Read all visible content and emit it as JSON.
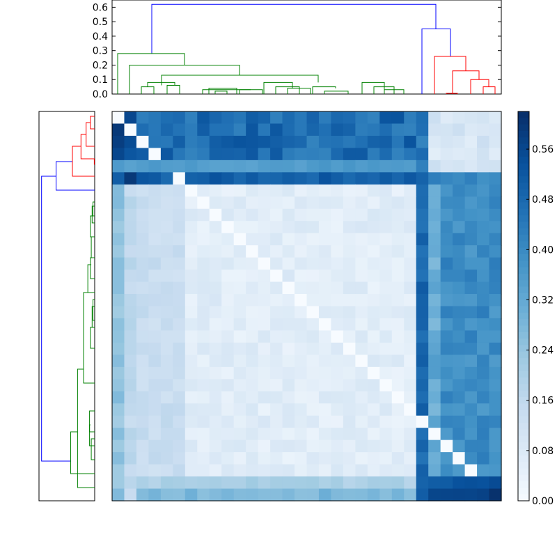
{
  "chart_data": [
    {
      "type": "dendrogram",
      "orientation": "top",
      "ylim": [
        0,
        0.65
      ],
      "yticks": [
        0.0,
        0.1,
        0.2,
        0.3,
        0.4,
        0.5,
        0.6
      ],
      "ytick_labels": [
        "0.0",
        "0.1",
        "0.2",
        "0.3",
        "0.4",
        "0.5",
        "0.6"
      ],
      "n_leaves": 32,
      "colors": {
        "root": "#0000ff",
        "cluster_a": "#008000",
        "cluster_b": "#ff0000"
      },
      "links": [
        {
          "left": 24,
          "right": 24,
          "height": 0.0,
          "color": "cluster_a"
        }
      ]
    },
    {
      "type": "dendrogram",
      "orientation": "left",
      "n_leaves": 32
    },
    {
      "type": "heatmap",
      "rows": 32,
      "cols": 32,
      "colormap": "Blues",
      "vmin": 0.0,
      "vmax": 0.62,
      "blocks": {
        "bluegroup_rows": [
          0,
          1,
          2,
          3,
          4,
          5
        ],
        "greengroup_rows": [
          6,
          31
        ],
        "redgroup_cols": [
          26,
          31
        ]
      }
    },
    {
      "type": "colorbar",
      "colormap": "Blues",
      "vmin": 0.0,
      "vmax": 0.62,
      "ticks": [
        0.0,
        0.08,
        0.16,
        0.24,
        0.32,
        0.4,
        0.48,
        0.56
      ],
      "tick_labels": [
        "0.00",
        "0.08",
        "0.16",
        "0.24",
        "0.32",
        "0.40",
        "0.48",
        "0.56"
      ]
    }
  ]
}
